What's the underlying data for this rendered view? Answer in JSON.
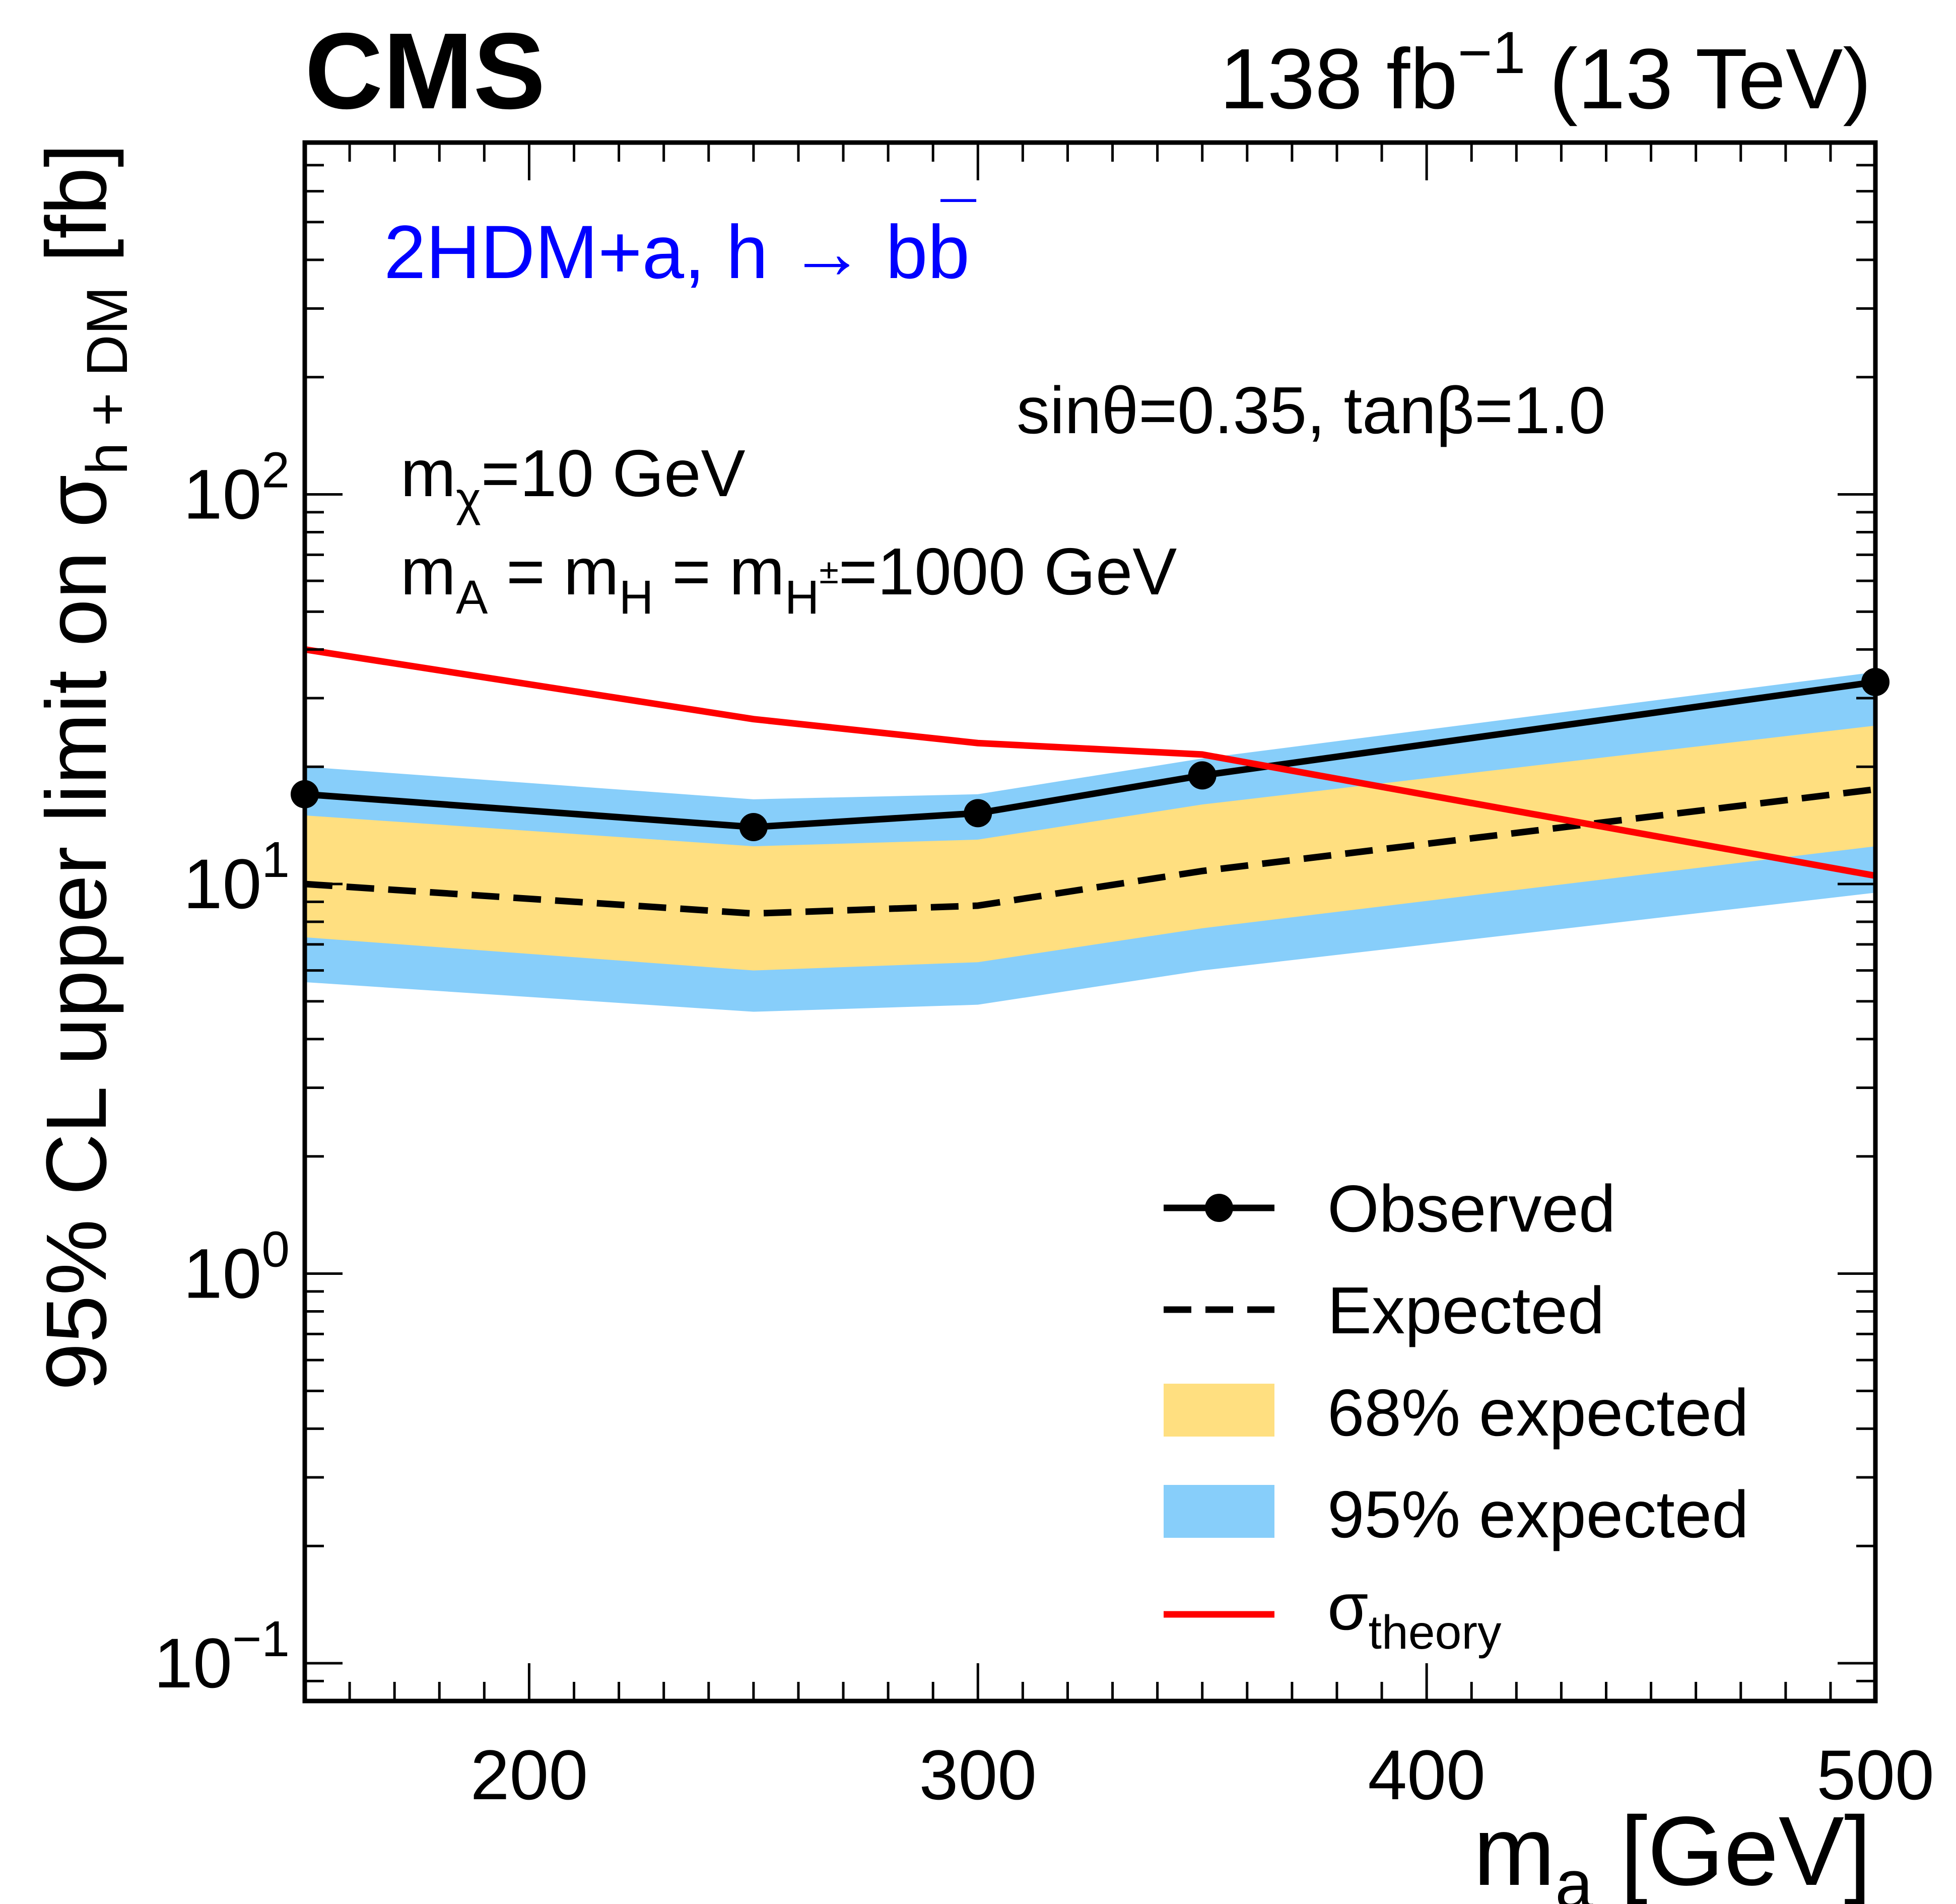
{
  "chart_data": {
    "type": "line",
    "title": "",
    "experiment": "CMS",
    "lumi_label": "138 fb",
    "lumi_exponent": "−1",
    "energy_label": "(13 TeV)",
    "model_label": "2HDM+a, h → bb",
    "model_bar": "¯",
    "params": {
      "sin_tan": "sinθ=0.35, tanβ=1.0",
      "mchi_prefix": "m",
      "mchi_sub": "χ",
      "mchi_value": "=10 GeV",
      "m_a_prefix": "m",
      "m_a_sub": "A",
      "m_h_prefix": " = m",
      "m_h_sub": "H",
      "m_hpm_prefix": " = m",
      "m_hpm_sub": "H",
      "m_hpm_sup": "±",
      "m_value": "=1000 GeV"
    },
    "xlabel_main": "m",
    "xlabel_sub": "a",
    "xlabel_unit": " [GeV]",
    "ylabel_main": "95% CL upper limit on σ",
    "ylabel_sub": "h + DM",
    "ylabel_unit": " [fb]",
    "xlim": [
      150,
      500
    ],
    "ylim": [
      0.08,
      800
    ],
    "yscale": "log",
    "xticks": [
      200,
      300,
      400,
      500
    ],
    "xtick_labels": [
      "200",
      "300",
      "400",
      "500"
    ],
    "yticks": [
      {
        "value": 0.1,
        "base": "10",
        "exp": "−1"
      },
      {
        "value": 1,
        "base": "10",
        "exp": "0"
      },
      {
        "value": 10,
        "base": "10",
        "exp": "1"
      },
      {
        "value": 100,
        "base": "10",
        "exp": "2"
      }
    ],
    "x": [
      150,
      250,
      300,
      350,
      500
    ],
    "series": [
      {
        "name": "Observed",
        "style": "solid-markers",
        "color": "#000000",
        "x": [
          150,
          250,
          300,
          350,
          500
        ],
        "values": [
          17.0,
          14.0,
          15.2,
          19.0,
          33.0
        ]
      },
      {
        "name": "Expected",
        "style": "dashed",
        "color": "#000000",
        "x": [
          150,
          250,
          300,
          350,
          500
        ],
        "values": [
          10.0,
          8.4,
          8.8,
          10.8,
          17.5
        ]
      },
      {
        "name": "σ",
        "name_sub": "theory",
        "style": "solid",
        "color": "#ff0000",
        "x": [
          150,
          250,
          300,
          350,
          500
        ],
        "values": [
          40.0,
          26.5,
          23.0,
          21.5,
          10.5
        ]
      }
    ],
    "bands": [
      {
        "name": "95% expected",
        "color": "#87cefa",
        "x": [
          150,
          250,
          300,
          350,
          500
        ],
        "lower": [
          5.6,
          4.7,
          4.9,
          6.0,
          9.5
        ],
        "upper": [
          20.0,
          16.5,
          17.0,
          21.0,
          35.0
        ]
      },
      {
        "name": "68% expected",
        "color": "#ffdf80",
        "x": [
          150,
          250,
          300,
          350,
          500
        ],
        "lower": [
          7.3,
          6.0,
          6.3,
          7.7,
          12.5
        ],
        "upper": [
          15.0,
          12.5,
          13.0,
          16.0,
          25.5
        ]
      }
    ],
    "legend": {
      "position": "bottom-right",
      "entries": [
        {
          "label": "Observed",
          "kind": "line-marker",
          "color": "#000000"
        },
        {
          "label": "Expected",
          "kind": "dashed",
          "color": "#000000"
        },
        {
          "label": "68% expected",
          "kind": "box",
          "color": "#ffdf80"
        },
        {
          "label": "95% expected",
          "kind": "box",
          "color": "#87cefa"
        },
        {
          "label": "σ",
          "sub": "theory",
          "kind": "line",
          "color": "#ff0000"
        }
      ]
    },
    "colors": {
      "model_label": "#0000ff",
      "axes": "#000000"
    }
  }
}
